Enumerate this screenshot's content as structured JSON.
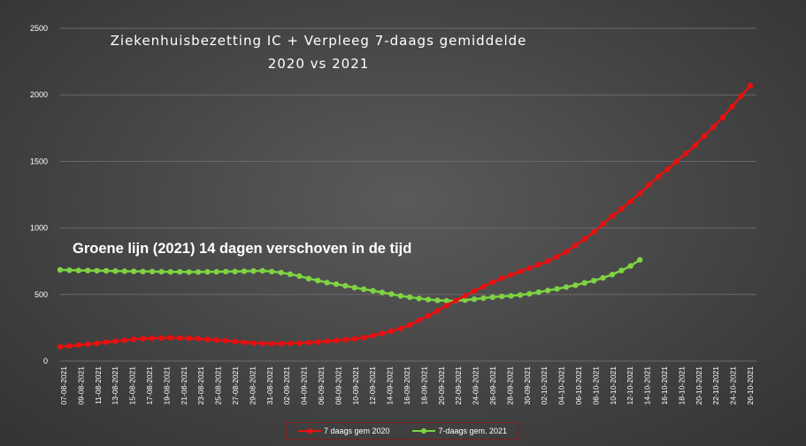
{
  "title_line1": "Ziekenhuisbezetting IC + Verpleeg 7-daags gemiddelde",
  "title_line2": "2020 vs 2021",
  "annotation": "Groene lijn (2021) 14 dagen verschoven in de tijd",
  "colors": {
    "series_2020": "#e81010",
    "series_2021": "#7ed342",
    "grid": "#6a6a6a",
    "text": "#ffffff"
  },
  "chart_data": {
    "type": "line",
    "ylim": [
      0,
      2500
    ],
    "yticks": [
      0,
      500,
      1000,
      1500,
      2000,
      2500
    ],
    "grid": true,
    "legend_position": "bottom",
    "x_labels": [
      "07-08-2021",
      "09-08-2021",
      "11-08-2021",
      "13-08-2021",
      "15-08-2021",
      "17-08-2021",
      "19-08-2021",
      "21-08-2021",
      "23-08-2021",
      "25-08-2021",
      "27-08-2021",
      "29-08-2021",
      "31-08-2021",
      "02-09-2021",
      "04-09-2021",
      "06-09-2021",
      "08-09-2021",
      "10-09-2021",
      "12-09-2021",
      "14-09-2021",
      "16-09-2021",
      "18-09-2021",
      "20-09-2021",
      "22-09-2021",
      "24-09-2021",
      "26-09-2021",
      "28-09-2021",
      "30-09-2021",
      "02-10-2021",
      "04-10-2021",
      "06-10-2021",
      "08-10-2021",
      "10-10-2021",
      "12-10-2021",
      "14-10-2021",
      "16-10-2021",
      "18-10-2021",
      "20-10-2021",
      "22-10-2021",
      "24-10-2021",
      "26-10-2021"
    ],
    "series": [
      {
        "name": "7 daags gem 2020",
        "values": [
          108,
          114,
          120,
          126,
          133,
          142,
          149,
          156,
          163,
          168,
          171,
          173,
          174,
          173,
          171,
          168,
          163,
          158,
          153,
          146,
          140,
          135,
          132,
          131,
          131,
          132,
          134,
          138,
          143,
          149,
          155,
          161,
          167,
          177,
          192,
          208,
          225,
          245,
          272,
          305,
          340,
          377,
          417,
          455,
          490,
          525,
          560,
          592,
          622,
          648,
          673,
          698,
          725,
          750,
          785,
          820,
          870,
          918,
          970,
          1030,
          1090,
          1145,
          1200,
          1260,
          1325,
          1385,
          1440,
          1500,
          1560,
          1620,
          1690,
          1760,
          1830,
          1910,
          1990,
          2070
        ]
      },
      {
        "name": "7-daags gem. 2021",
        "values": [
          685,
          683,
          681,
          680,
          679,
          678,
          676,
          675,
          674,
          673,
          672,
          671,
          670,
          670,
          669,
          669,
          670,
          671,
          672,
          673,
          675,
          677,
          678,
          672,
          665,
          653,
          638,
          620,
          605,
          590,
          578,
          565,
          552,
          540,
          528,
          515,
          503,
          490,
          480,
          470,
          462,
          456,
          453,
          454,
          458,
          465,
          473,
          480,
          486,
          490,
          496,
          505,
          517,
          530,
          542,
          556,
          570,
          587,
          604,
          625,
          650,
          680,
          715,
          760
        ]
      }
    ]
  }
}
